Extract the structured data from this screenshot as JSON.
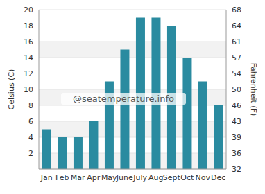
{
  "chart_data": {
    "type": "bar",
    "categories": [
      "Jan",
      "Feb",
      "Mar",
      "Apr",
      "May",
      "June",
      "July",
      "Aug",
      "Sept",
      "Oct",
      "Nov",
      "Dec"
    ],
    "values": [
      5,
      4,
      4,
      6,
      11,
      15,
      19,
      19,
      18,
      14,
      11,
      8
    ],
    "color": "#2a8ba0",
    "y_label": "Celsius (C)",
    "y2_label": "Fahrenheit (F)",
    "ylim": [
      0,
      20
    ],
    "yticks": [
      2,
      4,
      6,
      8,
      10,
      12,
      14,
      16,
      18,
      20
    ],
    "y2lim": [
      32,
      68
    ],
    "y2ticks": [
      32,
      {
        "value": 35.6,
        "label": "36"
      },
      {
        "value": 39.2,
        "label": "39"
      },
      {
        "value": 42.8,
        "label": "43"
      },
      {
        "value": 46.4,
        "label": "46"
      },
      50,
      {
        "value": 53.6,
        "label": "54"
      },
      {
        "value": 57.2,
        "label": "57"
      },
      {
        "value": 60.8,
        "label": "61"
      },
      {
        "value": 64.4,
        "label": "64"
      },
      68
    ],
    "grid": true,
    "annotations": [
      "@seatemperature.info"
    ]
  }
}
